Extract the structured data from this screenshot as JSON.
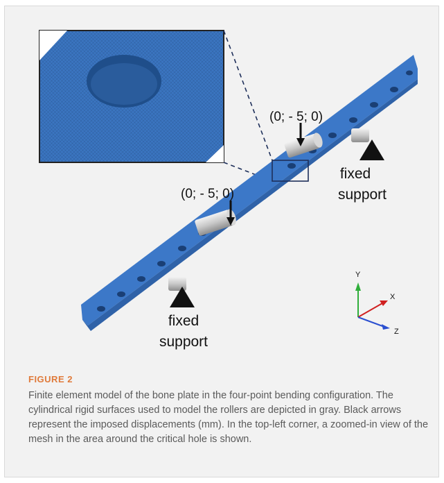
{
  "figure": {
    "load_label_upper": "(0; - 5; 0)",
    "load_label_lower": "(0; - 5; 0)",
    "support_upper_line1": "fixed",
    "support_upper_line2": "support",
    "support_lower_line1": "fixed",
    "support_lower_line2": "support",
    "axis_y": "Y",
    "axis_x": "X",
    "axis_z": "Z"
  },
  "caption": {
    "label": "FIGURE 2",
    "text": "Finite element model of the bone plate in the four-point bending configuration. The cylindrical rigid surfaces used to model the rollers are depicted in gray. Black arrows represent the imposed displacements (mm). In the top-left corner, a zoomed-in view of the mesh in the area around the critical hole is shown."
  },
  "colors": {
    "plate_blue": "#3c78c8",
    "roller_gray": "#bdbdbd",
    "caption_label": "#e07a3a"
  }
}
